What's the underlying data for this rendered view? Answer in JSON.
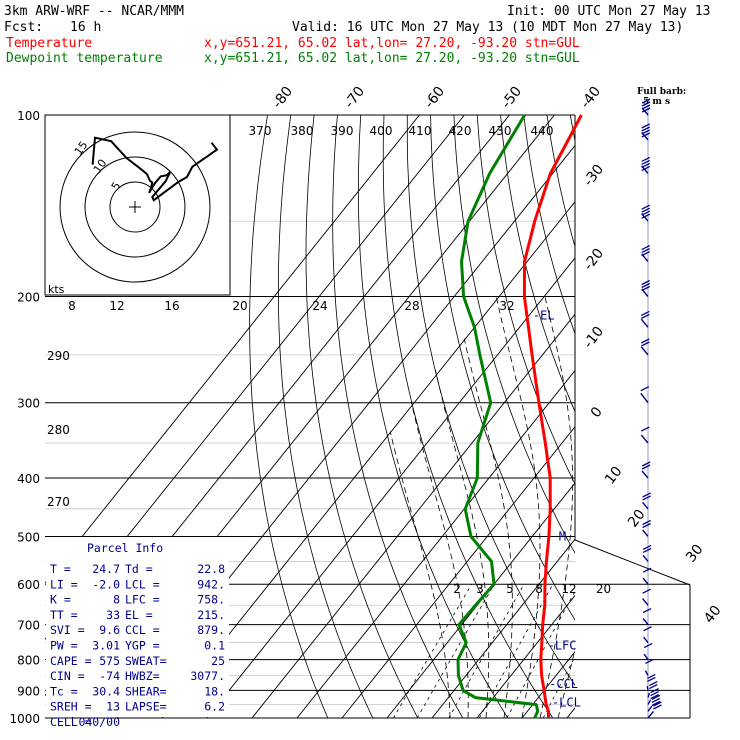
{
  "header": {
    "model": "3km ARW-WRF -- NCAR/MMM",
    "init": "Init: 00 UTC Mon 27 May 13",
    "fcst_label": "Fcst:",
    "fcst_value": "16 h",
    "valid": "Valid: 16 UTC Mon 27 May 13 (10 MDT Mon 27 May 13)",
    "temp_label": "Temperature",
    "temp_info": "x,y=651.21, 65.02   lat,lon= 27.20, -93.20  stn=GUL",
    "dew_label": "Dewpoint temperature",
    "dew_info": "x,y=651.21, 65.02   lat,lon= 27.20, -93.20  stn=GUL",
    "barb_note_1": "Full barb:",
    "barb_note_2": "5 m s"
  },
  "colors": {
    "temperature": "#ff0000",
    "dewpoint": "#008000",
    "annot": "#00008b",
    "grid": "#000000"
  },
  "chart_data": {
    "type": "line",
    "title": "",
    "y_axis": "pressure (hPa, log scale)",
    "pressure_ticks": [
      100,
      200,
      300,
      400,
      500,
      600,
      700,
      800,
      900,
      1000
    ],
    "temp_isotherm_labels": [
      -80,
      -70,
      -60,
      -50,
      -40,
      -30,
      -20,
      -10,
      0,
      10,
      20,
      30,
      40
    ],
    "theta_labels_top": [
      370,
      380,
      390,
      400,
      410,
      420,
      430,
      440
    ],
    "theta_labels_left": [
      290,
      280,
      270
    ],
    "mixing_ratio_labels": [
      2,
      3,
      5,
      8,
      12,
      20
    ],
    "series": [
      {
        "name": "Temperature",
        "points": [
          [
            1000,
            25.9
          ],
          [
            975,
            24.7
          ],
          [
            950,
            23.0
          ],
          [
            925,
            21.5
          ],
          [
            900,
            20.0
          ],
          [
            850,
            16.8
          ],
          [
            800,
            13.8
          ],
          [
            750,
            11.0
          ],
          [
            700,
            8.0
          ],
          [
            650,
            5.0
          ],
          [
            600,
            1.3
          ],
          [
            550,
            -2.4
          ],
          [
            500,
            -6.3
          ],
          [
            450,
            -10.9
          ],
          [
            400,
            -16.4
          ],
          [
            350,
            -23.7
          ],
          [
            300,
            -32.3
          ],
          [
            250,
            -42.3
          ],
          [
            225,
            -48.0
          ],
          [
            200,
            -54.4
          ],
          [
            175,
            -60.6
          ],
          [
            150,
            -65.5
          ],
          [
            125,
            -70.5
          ],
          [
            110,
            -72.5
          ],
          [
            100,
            -74.0
          ]
        ]
      },
      {
        "name": "Dewpoint temperature",
        "points": [
          [
            1000,
            22.8
          ],
          [
            975,
            22.3
          ],
          [
            950,
            20.8
          ],
          [
            925,
            6.0
          ],
          [
            900,
            2.0
          ],
          [
            850,
            -1.7
          ],
          [
            800,
            -4.6
          ],
          [
            750,
            -5.8
          ],
          [
            700,
            -10.6
          ],
          [
            650,
            -10.4
          ],
          [
            600,
            -10.0
          ],
          [
            550,
            -14.6
          ],
          [
            500,
            -23.6
          ],
          [
            450,
            -29.8
          ],
          [
            400,
            -32.6
          ],
          [
            350,
            -38.7
          ],
          [
            300,
            -43.0
          ],
          [
            250,
            -53.9
          ],
          [
            225,
            -60.0
          ],
          [
            200,
            -67.9
          ],
          [
            175,
            -74.6
          ],
          [
            150,
            -80.3
          ],
          [
            125,
            -84.0
          ],
          [
            100,
            -86.6
          ]
        ]
      }
    ],
    "levels_marked": [
      {
        "label": "-EL",
        "p": 215
      },
      {
        "label": "M",
        "p": 500
      },
      {
        "label": "-LFC",
        "p": 758
      },
      {
        "label": "-CCL",
        "p": 879
      },
      {
        "label": "-LCL",
        "p": 942
      }
    ],
    "wind_barbs": [
      {
        "p": 1000,
        "speed_kts": 12,
        "dir": 135
      },
      {
        "p": 975,
        "speed_kts": 16,
        "dir": 150
      },
      {
        "p": 950,
        "speed_kts": 14,
        "dir": 160
      },
      {
        "p": 925,
        "speed_kts": 10,
        "dir": 170
      },
      {
        "p": 900,
        "speed_kts": 8,
        "dir": 185
      },
      {
        "p": 850,
        "speed_kts": 7,
        "dir": 200
      },
      {
        "p": 800,
        "speed_kts": 6,
        "dir": 210
      },
      {
        "p": 750,
        "speed_kts": 6,
        "dir": 215
      },
      {
        "p": 700,
        "speed_kts": 5,
        "dir": 220
      },
      {
        "p": 650,
        "speed_kts": 4,
        "dir": 225
      },
      {
        "p": 600,
        "speed_kts": 6,
        "dir": 220
      },
      {
        "p": 550,
        "speed_kts": 8,
        "dir": 220
      },
      {
        "p": 500,
        "speed_kts": 9,
        "dir": 225
      },
      {
        "p": 450,
        "speed_kts": 10,
        "dir": 225
      },
      {
        "p": 400,
        "speed_kts": 8,
        "dir": 230
      },
      {
        "p": 350,
        "speed_kts": 4,
        "dir": 240
      },
      {
        "p": 300,
        "speed_kts": 4,
        "dir": 250
      },
      {
        "p": 250,
        "speed_kts": 10,
        "dir": 240
      },
      {
        "p": 225,
        "speed_kts": 12,
        "dir": 240
      },
      {
        "p": 200,
        "speed_kts": 14,
        "dir": 235
      },
      {
        "p": 175,
        "speed_kts": 16,
        "dir": 235
      },
      {
        "p": 150,
        "speed_kts": 18,
        "dir": 235
      },
      {
        "p": 125,
        "speed_kts": 20,
        "dir": 235
      },
      {
        "p": 110,
        "speed_kts": 20,
        "dir": 235
      },
      {
        "p": 100,
        "speed_kts": 20,
        "dir": 230
      }
    ],
    "hodograph": {
      "ring_labels": [
        {
          "text": "5",
          "ring": 1
        },
        {
          "text": "10",
          "ring": 2
        },
        {
          "text": "15",
          "ring": 3
        }
      ],
      "kts_label": "kts",
      "speed_labels": [
        "8",
        "12",
        "16",
        "20",
        "24",
        "28",
        "32"
      ]
    }
  },
  "parcel_info": {
    "title": "Parcel Info",
    "rows": [
      [
        "T  =",
        "24.7",
        "Td =",
        "22.8"
      ],
      [
        "LI =",
        "-2.0",
        "LCL =",
        "942."
      ],
      [
        "K  =",
        "8",
        "LFC =",
        "758."
      ],
      [
        "TT =",
        "33",
        "EL  =",
        "215."
      ],
      [
        "SVI =",
        "9.6",
        "CCL =",
        "879."
      ],
      [
        "PW =",
        "3.01",
        "YGP =",
        "0.1"
      ],
      [
        "CAPE =",
        "575",
        "SWEAT=",
        "25"
      ],
      [
        "CIN =",
        "-74",
        "HWBZ=",
        "3077."
      ],
      [
        "Tc =",
        "30.4",
        "SHEAR=",
        "18."
      ],
      [
        "SREH =",
        "13",
        "LAPSE=",
        "6.2"
      ],
      [
        "CELL =",
        "040/00",
        "",
        ""
      ]
    ]
  }
}
